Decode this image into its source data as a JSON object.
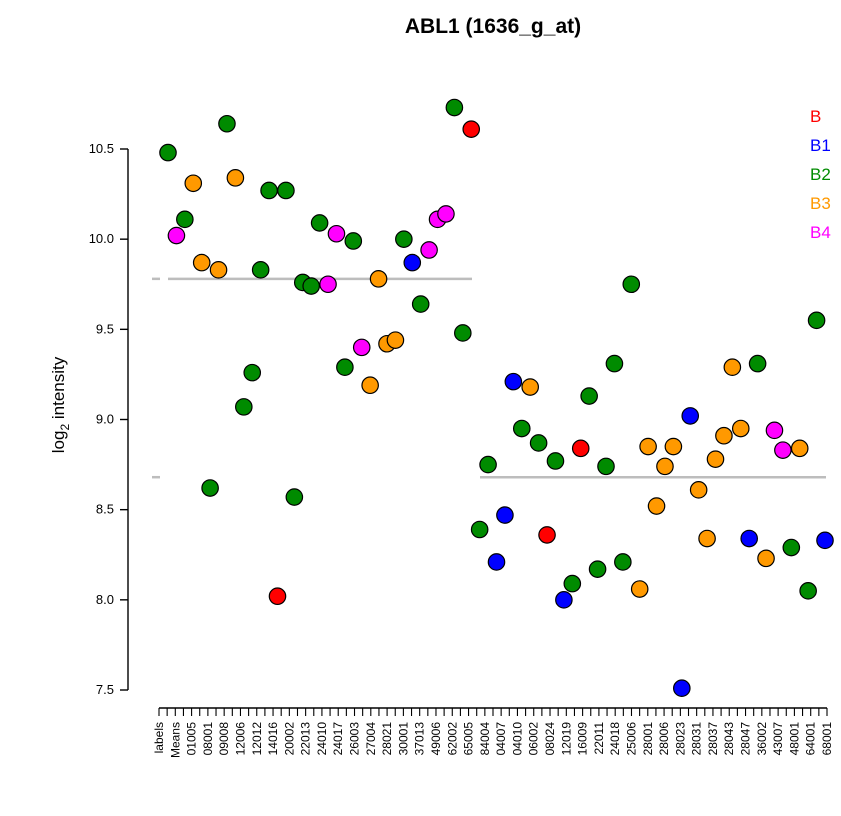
{
  "chart_data": {
    "type": "scatter",
    "title": "ABL1 (1636_g_at)",
    "ylabel_main": "log",
    "ylabel_sub": "2",
    "ylabel_rest": " intensity",
    "ylim": [
      7.5,
      10.75
    ],
    "yticks": [
      7.5,
      8.0,
      8.5,
      9.0,
      9.5,
      10.0,
      10.5
    ],
    "ytick_labels": [
      "7.5",
      "8.0",
      "8.5",
      "9.0",
      "9.5",
      "10.0",
      "10.5"
    ],
    "category_labels": [
      "labels",
      "Means",
      "01005",
      "08001",
      "09008",
      "12006",
      "12012",
      "14016",
      "20002",
      "22013",
      "24010",
      "24017",
      "26003",
      "27004",
      "28021",
      "30001",
      "37013",
      "49006",
      "62002",
      "65005",
      "84004",
      "04007",
      "04010",
      "06002",
      "08024",
      "12019",
      "16009",
      "22011",
      "24018",
      "25006",
      "28001",
      "28006",
      "28023",
      "28031",
      "28037",
      "28043",
      "28047",
      "36002",
      "43007",
      "48001",
      "64001",
      "68001"
    ],
    "group_means": [
      {
        "value": 9.78,
        "from": 1,
        "to": 40
      },
      {
        "value": 8.68,
        "from": 41,
        "to": 82
      }
    ],
    "legend": [
      {
        "name": "B",
        "color": "#ff0000"
      },
      {
        "name": "B1",
        "color": "#0000ff"
      },
      {
        "name": "B2",
        "color": "#008b00"
      },
      {
        "name": "B3",
        "color": "#ff9900"
      },
      {
        "name": "B4",
        "color": "#ff00ff"
      }
    ],
    "series": [
      {
        "name": "points",
        "points": [
          {
            "x": 1,
            "y": 10.48,
            "g": "B2"
          },
          {
            "x": 2,
            "y": 10.02,
            "g": "B4"
          },
          {
            "x": 3,
            "y": 10.11,
            "g": "B2"
          },
          {
            "x": 4,
            "y": 10.31,
            "g": "B3"
          },
          {
            "x": 5,
            "y": 9.87,
            "g": "B3"
          },
          {
            "x": 6,
            "y": 8.62,
            "g": "B2"
          },
          {
            "x": 7,
            "y": 9.83,
            "g": "B3"
          },
          {
            "x": 8,
            "y": 10.64,
            "g": "B2"
          },
          {
            "x": 9,
            "y": 10.34,
            "g": "B3"
          },
          {
            "x": 10,
            "y": 9.07,
            "g": "B2"
          },
          {
            "x": 11,
            "y": 9.26,
            "g": "B2"
          },
          {
            "x": 12,
            "y": 9.83,
            "g": "B2"
          },
          {
            "x": 13,
            "y": 10.27,
            "g": "B2"
          },
          {
            "x": 14,
            "y": 8.02,
            "g": "B"
          },
          {
            "x": 15,
            "y": 10.27,
            "g": "B2"
          },
          {
            "x": 16,
            "y": 8.57,
            "g": "B2"
          },
          {
            "x": 17,
            "y": 9.76,
            "g": "B2"
          },
          {
            "x": 18,
            "y": 9.74,
            "g": "B2"
          },
          {
            "x": 19,
            "y": 10.09,
            "g": "B2"
          },
          {
            "x": 20,
            "y": 9.75,
            "g": "B4"
          },
          {
            "x": 21,
            "y": 10.03,
            "g": "B4"
          },
          {
            "x": 22,
            "y": 9.29,
            "g": "B2"
          },
          {
            "x": 23,
            "y": 9.99,
            "g": "B2"
          },
          {
            "x": 24,
            "y": 9.4,
            "g": "B4"
          },
          {
            "x": 25,
            "y": 9.19,
            "g": "B3"
          },
          {
            "x": 26,
            "y": 9.78,
            "g": "B3"
          },
          {
            "x": 27,
            "y": 9.42,
            "g": "B3"
          },
          {
            "x": 28,
            "y": 9.44,
            "g": "B3"
          },
          {
            "x": 29,
            "y": 10.0,
            "g": "B2"
          },
          {
            "x": 30,
            "y": 9.87,
            "g": "B1"
          },
          {
            "x": 31,
            "y": 9.64,
            "g": "B2"
          },
          {
            "x": 32,
            "y": 9.94,
            "g": "B4"
          },
          {
            "x": 33,
            "y": 10.11,
            "g": "B4"
          },
          {
            "x": 34,
            "y": 10.14,
            "g": "B4"
          },
          {
            "x": 35,
            "y": 10.73,
            "g": "B2"
          },
          {
            "x": 36,
            "y": 9.48,
            "g": "B2"
          },
          {
            "x": 37,
            "y": 10.61,
            "g": "B"
          },
          {
            "x": 38,
            "y": 8.39,
            "g": "B2"
          },
          {
            "x": 39,
            "y": 8.75,
            "g": "B2"
          },
          {
            "x": 40,
            "y": 8.21,
            "g": "B1"
          },
          {
            "x": 41,
            "y": 8.47,
            "g": "B1"
          },
          {
            "x": 42,
            "y": 9.21,
            "g": "B1"
          },
          {
            "x": 43,
            "y": 8.95,
            "g": "B2"
          },
          {
            "x": 44,
            "y": 9.18,
            "g": "B3"
          },
          {
            "x": 45,
            "y": 8.87,
            "g": "B2"
          },
          {
            "x": 46,
            "y": 8.36,
            "g": "B"
          },
          {
            "x": 47,
            "y": 8.77,
            "g": "B2"
          },
          {
            "x": 48,
            "y": 8.0,
            "g": "B1"
          },
          {
            "x": 49,
            "y": 8.09,
            "g": "B2"
          },
          {
            "x": 50,
            "y": 8.84,
            "g": "B"
          },
          {
            "x": 51,
            "y": 9.13,
            "g": "B2"
          },
          {
            "x": 52,
            "y": 8.17,
            "g": "B2"
          },
          {
            "x": 53,
            "y": 8.74,
            "g": "B2"
          },
          {
            "x": 54,
            "y": 9.31,
            "g": "B2"
          },
          {
            "x": 55,
            "y": 8.21,
            "g": "B2"
          },
          {
            "x": 56,
            "y": 9.75,
            "g": "B2"
          },
          {
            "x": 57,
            "y": 8.06,
            "g": "B3"
          },
          {
            "x": 58,
            "y": 8.85,
            "g": "B3"
          },
          {
            "x": 59,
            "y": 8.52,
            "g": "B3"
          },
          {
            "x": 60,
            "y": 8.74,
            "g": "B3"
          },
          {
            "x": 61,
            "y": 8.85,
            "g": "B3"
          },
          {
            "x": 62,
            "y": 7.51,
            "g": "B1"
          },
          {
            "x": 63,
            "y": 9.02,
            "g": "B1"
          },
          {
            "x": 64,
            "y": 8.61,
            "g": "B3"
          },
          {
            "x": 65,
            "y": 8.34,
            "g": "B3"
          },
          {
            "x": 66,
            "y": 8.78,
            "g": "B3"
          },
          {
            "x": 67,
            "y": 8.91,
            "g": "B3"
          },
          {
            "x": 68,
            "y": 9.29,
            "g": "B3"
          },
          {
            "x": 69,
            "y": 8.95,
            "g": "B3"
          },
          {
            "x": 70,
            "y": 8.34,
            "g": "B1"
          },
          {
            "x": 71,
            "y": 9.31,
            "g": "B2"
          },
          {
            "x": 72,
            "y": 8.23,
            "g": "B3"
          },
          {
            "x": 73,
            "y": 8.94,
            "g": "B4"
          },
          {
            "x": 74,
            "y": 8.83,
            "g": "B4"
          },
          {
            "x": 75,
            "y": 8.29,
            "g": "B2"
          },
          {
            "x": 76,
            "y": 8.84,
            "g": "B3"
          },
          {
            "x": 77,
            "y": 8.05,
            "g": "B2"
          },
          {
            "x": 78,
            "y": 9.55,
            "g": "B2"
          },
          {
            "x": 79,
            "y": 8.33,
            "g": "B1"
          }
        ]
      }
    ]
  }
}
